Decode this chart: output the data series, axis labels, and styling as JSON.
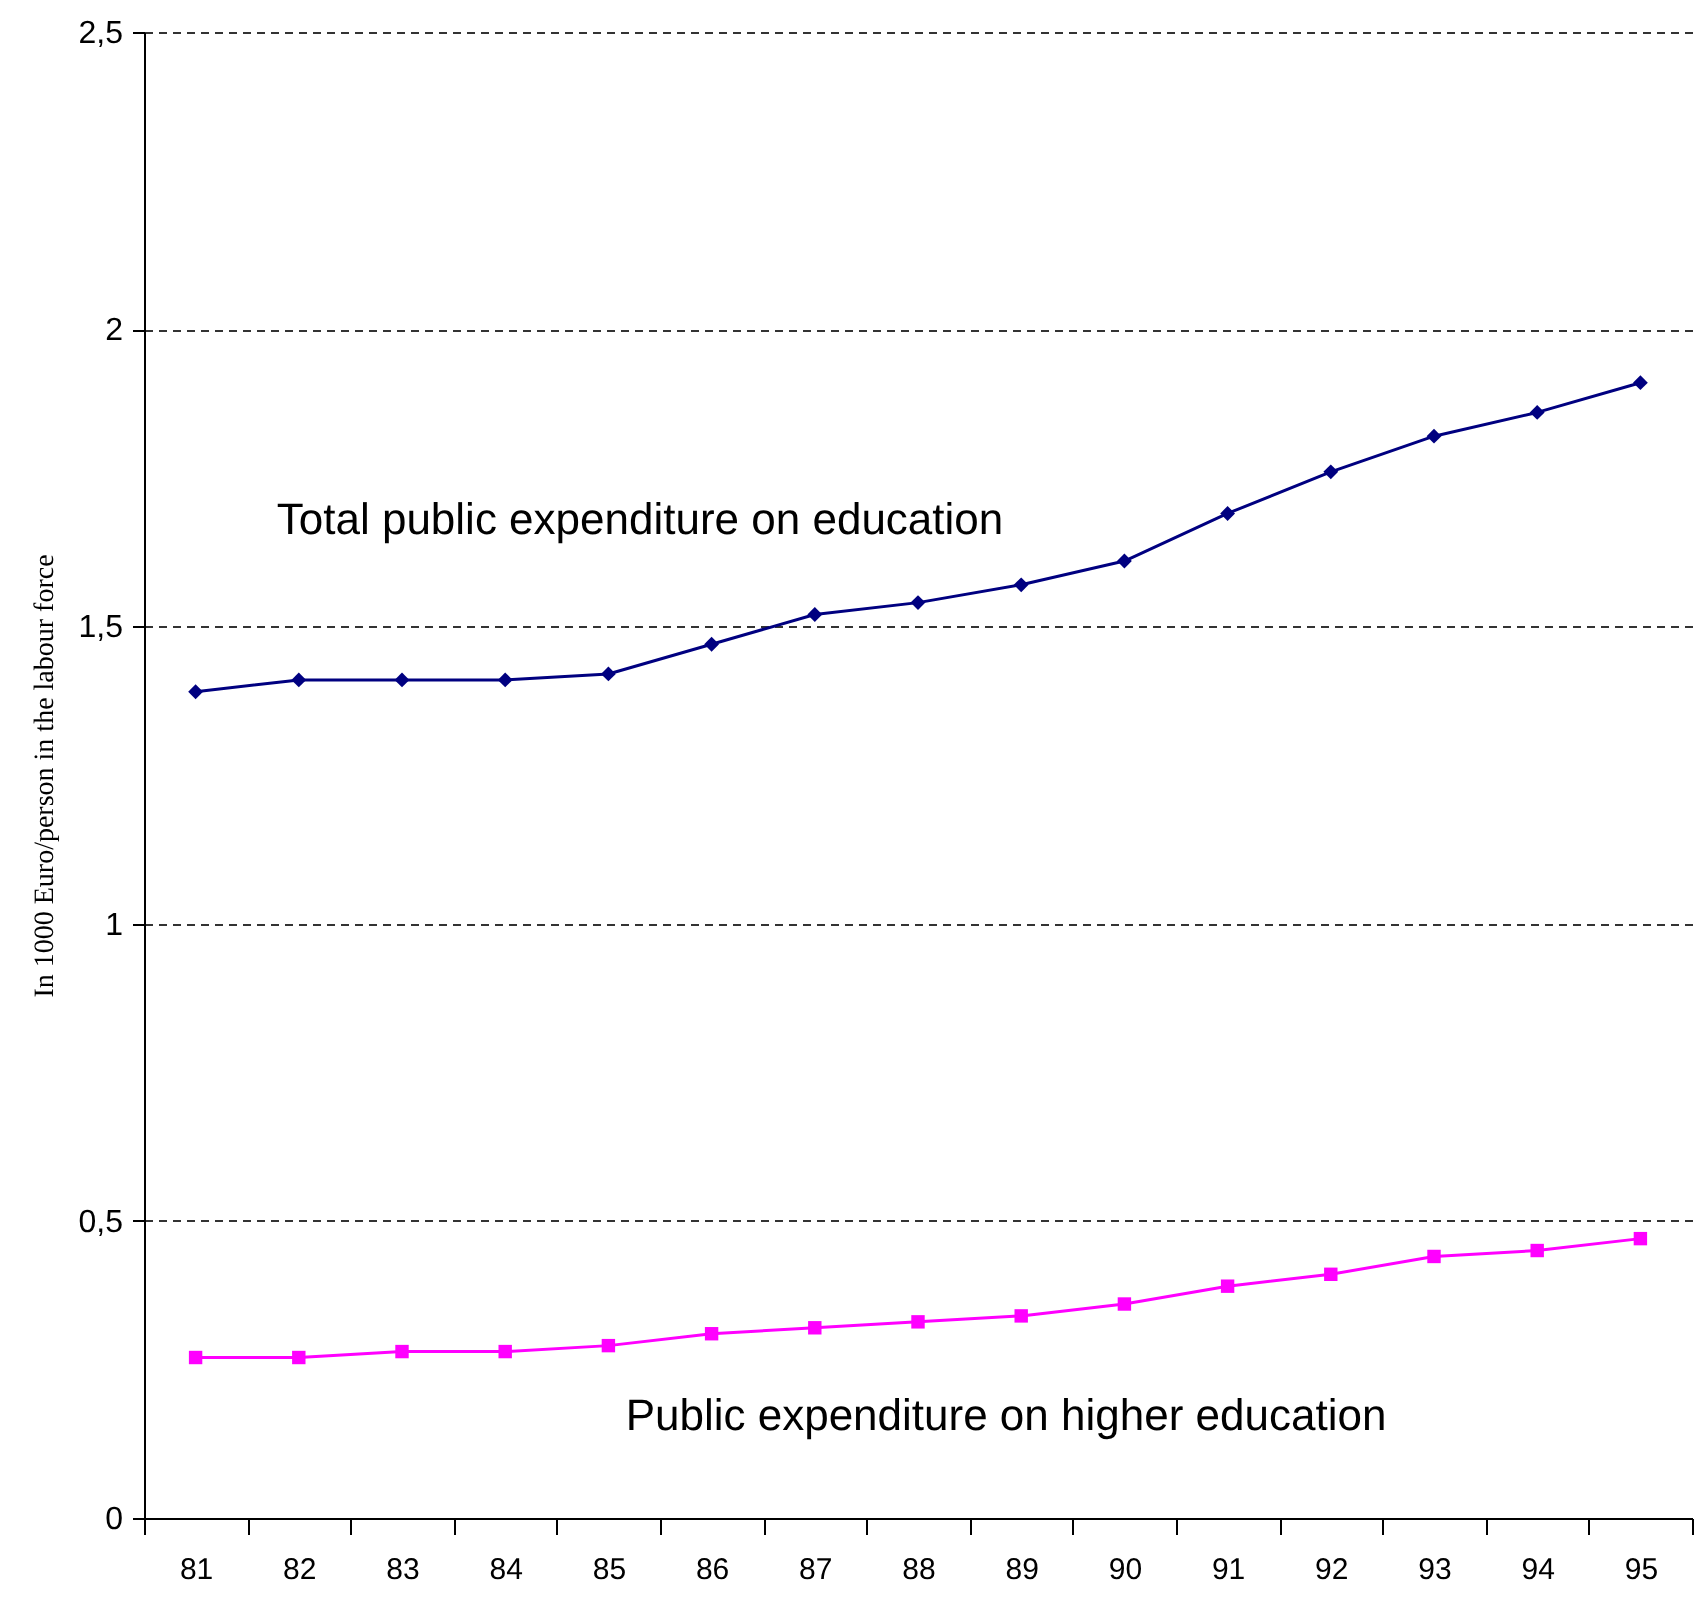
{
  "chart_data": {
    "type": "line",
    "ylabel": "In 1000 Euro/person in the labour force",
    "categories": [
      "81",
      "82",
      "83",
      "84",
      "85",
      "86",
      "87",
      "88",
      "89",
      "90",
      "91",
      "92",
      "93",
      "94",
      "95"
    ],
    "ylim": [
      0,
      2.5
    ],
    "yticks": [
      0,
      {
        "value": 0.5,
        "label": "0,5"
      },
      1,
      {
        "value": 1.5,
        "label": "1,5"
      },
      2,
      {
        "value": 2.5,
        "label": "2,5"
      }
    ],
    "grid": "y",
    "line_style": "solid",
    "series": [
      {
        "name": "Total public expenditure on education",
        "color": "#000080",
        "marker": "diamond",
        "values": [
          1.39,
          1.41,
          1.41,
          1.41,
          1.42,
          1.47,
          1.52,
          1.54,
          1.57,
          1.61,
          1.69,
          1.76,
          1.82,
          1.86,
          1.91
        ]
      },
      {
        "name": "Public expenditure on higher education",
        "color": "#ff00ff",
        "marker": "square",
        "values": [
          0.27,
          0.27,
          0.28,
          0.28,
          0.29,
          0.31,
          0.32,
          0.33,
          0.34,
          0.36,
          0.39,
          0.41,
          0.44,
          0.45,
          0.47
        ]
      }
    ]
  }
}
